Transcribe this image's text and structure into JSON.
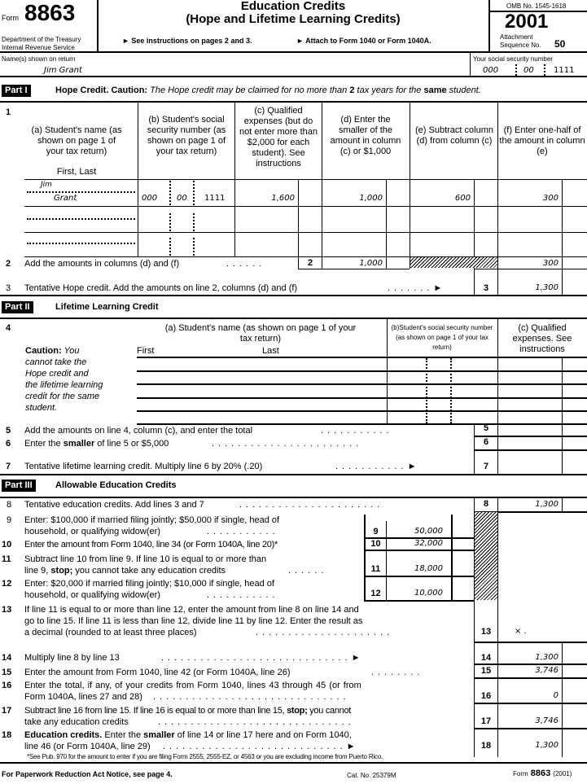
{
  "header": {
    "form_label": "Form",
    "form_number": "8863",
    "dept": "Department of the Treasury",
    "irs": "Internal Revenue Service",
    "title": "Education Credits",
    "subtitle": "(Hope and Lifetime Learning Credits)",
    "instr1": "► See instructions on pages 2 and 3.",
    "instr2": "► Attach to Form 1040 or Form 1040A.",
    "omb": "OMB No. 1545-1618",
    "year": "2001",
    "attachment": "Attachment",
    "sequence": "Sequence No.",
    "sequence_no": "50"
  },
  "taxpayer": {
    "name_label": "Name(s) shown on return",
    "name": "Jim Grant",
    "ssn_label": "Your social security number",
    "ssn": [
      "000",
      "00",
      "1111"
    ]
  },
  "part1": {
    "label": "Part I",
    "title": "Hope Credit.",
    "caution": "Caution:",
    "caution_text": "The Hope credit may be claimed for no more than",
    "two": "2",
    "tail": "tax years for the",
    "same": "same",
    "tail2": "student.",
    "line1": "1",
    "col_a": "(a) Student's name (as shown on page 1 of your tax return)",
    "col_a_sub": "First, Last",
    "col_b": "(b) Student's social security number (as shown on page 1 of your tax return)",
    "col_c": "(c) Qualified expenses (but do not enter more than $2,000 for each student). See instructions",
    "col_d": "(d) Enter the smaller of the amount in column (c) or $1,000",
    "col_e": "(e) Subtract column (d) from column (c)",
    "col_f": "(f) Enter one-half of the amount in column (e)",
    "rows": [
      {
        "first": "Jim",
        "last": "Grant",
        "ssn": [
          "000",
          "00",
          "1111"
        ],
        "c": "1,600",
        "d": "1,000",
        "e": "600",
        "f": "300"
      }
    ],
    "line2": {
      "num": "2",
      "text": "Add the amounts in columns (d) and (f)",
      "d": "1,000",
      "f": "300"
    },
    "line3": {
      "num": "3",
      "text": "Tentative Hope credit. Add the amounts on line 2, columns (d) and (f)",
      "value": "1,300"
    }
  },
  "part2": {
    "label": "Part II",
    "title": "Lifetime Learning Credit",
    "line4": "4",
    "caution": "Caution:",
    "caution_text": [
      "You",
      "cannot take the",
      "Hope credit and",
      "the lifetime learning",
      "credit for the same",
      "student."
    ],
    "col_a": "(a) Student's name (as shown on page 1 of your tax return)",
    "first": "First",
    "last": "Last",
    "col_b": "(b)Student's social security number (as shown on page 1 of your tax return)",
    "col_c": "(c) Qualified expenses. See instructions",
    "line5": {
      "num": "5",
      "text": "Add the amounts on line 4, column (c), and enter the total"
    },
    "line6": {
      "num": "6",
      "pre": "Enter the",
      "bold": "smaller",
      "post": "of line 5 or $5,000"
    },
    "line7": {
      "num": "7",
      "text": "Tentative lifetime learning credit. Multiply line 6 by 20% (.20)"
    }
  },
  "part3": {
    "label": "Part III",
    "title": "Allowable Education Credits",
    "line8": {
      "num": "8",
      "text": "Tentative education credits. Add lines 3 and 7",
      "value": "1,300"
    },
    "line9": {
      "num": "9",
      "text1": "Enter: $100,000 if married filing jointly; $50,000 if single, head of",
      "text2": "household, or qualifying widow(er)",
      "value": "50,000"
    },
    "line10": {
      "num": "10",
      "text": "Enter the amount from Form 1040, line 34 (or Form 1040A, line 20)*",
      "value": "32,000"
    },
    "line11": {
      "num": "11",
      "text1": "Subtract line 10 from line 9. If line 10 is equal to or more than",
      "text2a": "line 9,",
      "stop": "stop;",
      "text2b": "you cannot take any education credits",
      "value": "18,000"
    },
    "line12": {
      "num": "12",
      "text1": "Enter: $20,000 if married filing jointly; $10,000 if single, head of",
      "text2": "household, or qualifying widow(er)",
      "value": "10,000"
    },
    "line13": {
      "num": "13",
      "text1": "If line 11 is equal to or more than line 12, enter the amount from line 8 on line 14 and",
      "text2": "go to line 15. If line 11 is less than line 12, divide line 11 by line 12. Enter the result as",
      "text3": "a decimal (rounded to at least three places)",
      "value": "×  ."
    },
    "line14": {
      "num": "14",
      "text": "Multiply line 8 by line 13",
      "value": "1,300"
    },
    "line15": {
      "num": "15",
      "text": "Enter the amount from Form 1040, line 42 (or Form 1040A, line 26)",
      "value": "3,746"
    },
    "line16": {
      "num": "16",
      "text1": "Enter the total, if any, of your credits from Form 1040, lines 43 through 45 (or from",
      "text2": "Form 1040A, lines 27 and 28)",
      "value": "0"
    },
    "line17": {
      "num": "17",
      "text1a": "Subtract line 16 from line 15. If line 16 is equal to or more than line 15,",
      "stop": "stop;",
      "text1b": "you cannot",
      "text2": "take any education credits",
      "value": "3,746"
    },
    "line18": {
      "num": "18",
      "bold": "Education credits.",
      "text1a": "Enter the",
      "smaller": "smaller",
      "text1b": "of line 14 or line 17 here and on Form 1040,",
      "text2": "line 46 (or Form 1040A, line 29)",
      "value": "1,300"
    },
    "footnote": "*See Pub. 970 for the amount to enter if you are filing Form 2555, 2555-EZ, or 4563 or you are excluding income from Puerto Rico."
  },
  "footer": {
    "paperwork": "For Paperwork Reduction Act Notice, see page 4.",
    "cat": "Cat. No. 25379M",
    "form": "Form",
    "form_number": "8863",
    "year": "(2001)"
  }
}
